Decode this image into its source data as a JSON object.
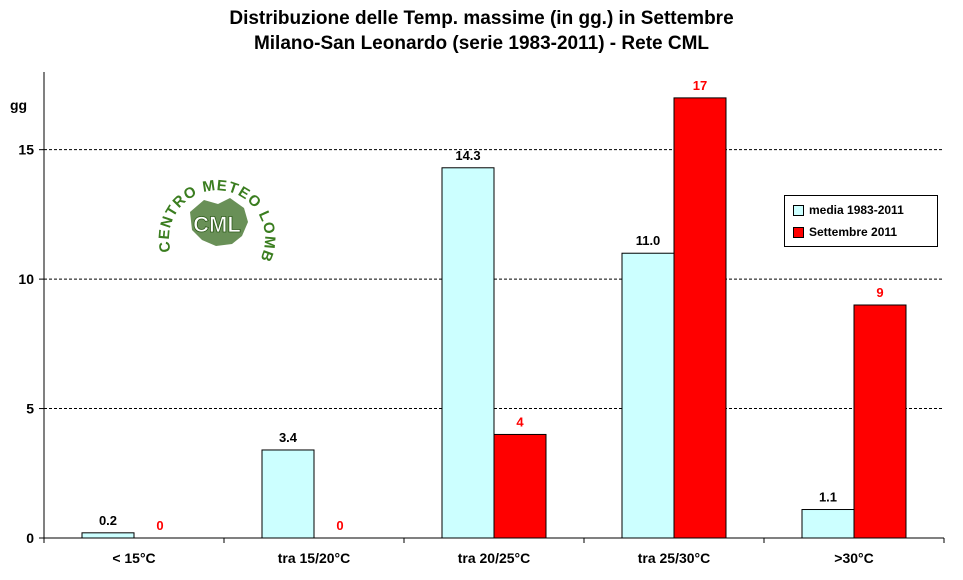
{
  "header": {
    "title_line1": "Distribuzione  delle  Temp.  massime  (in  gg.)  in  Settembre",
    "title_line2": "Milano-San  Leonardo  (serie  1983-2011)  -  Rete  CML"
  },
  "logo": {
    "ring_text": "CENTRO METEO LOMBARDO",
    "center_text": "CML"
  },
  "colors": {
    "media": "#ccffff",
    "settembre": "#ff0000",
    "settembre_label": "#ff0000",
    "logo_green": "#3a7d1f"
  },
  "chart_data": {
    "type": "bar",
    "title": "Distribuzione  delle  Temp.  massime  (in  gg.)  in  Settembre",
    "subtitle": "Milano-San  Leonardo  (serie  1983-2011)  -  Rete  CML",
    "ylabel": "gg",
    "xlabel": "",
    "ylim": [
      0,
      18
    ],
    "yticks": [
      0,
      5,
      10,
      15
    ],
    "grid": true,
    "legend_position": "right",
    "categories": [
      "< 15°C",
      "tra 15/20°C",
      "tra 20/25°C",
      "tra 25/30°C",
      ">30°C"
    ],
    "series": [
      {
        "name": "media 1983-2011",
        "values": [
          0.2,
          3.4,
          14.3,
          11.0,
          1.1
        ],
        "labels": [
          "0.2",
          "3.4",
          "14.3",
          "11.0",
          "1.1"
        ]
      },
      {
        "name": "Settembre 2011",
        "values": [
          0,
          0,
          4,
          17,
          9
        ],
        "labels": [
          "0",
          "0",
          "4",
          "17",
          "9"
        ]
      }
    ]
  }
}
